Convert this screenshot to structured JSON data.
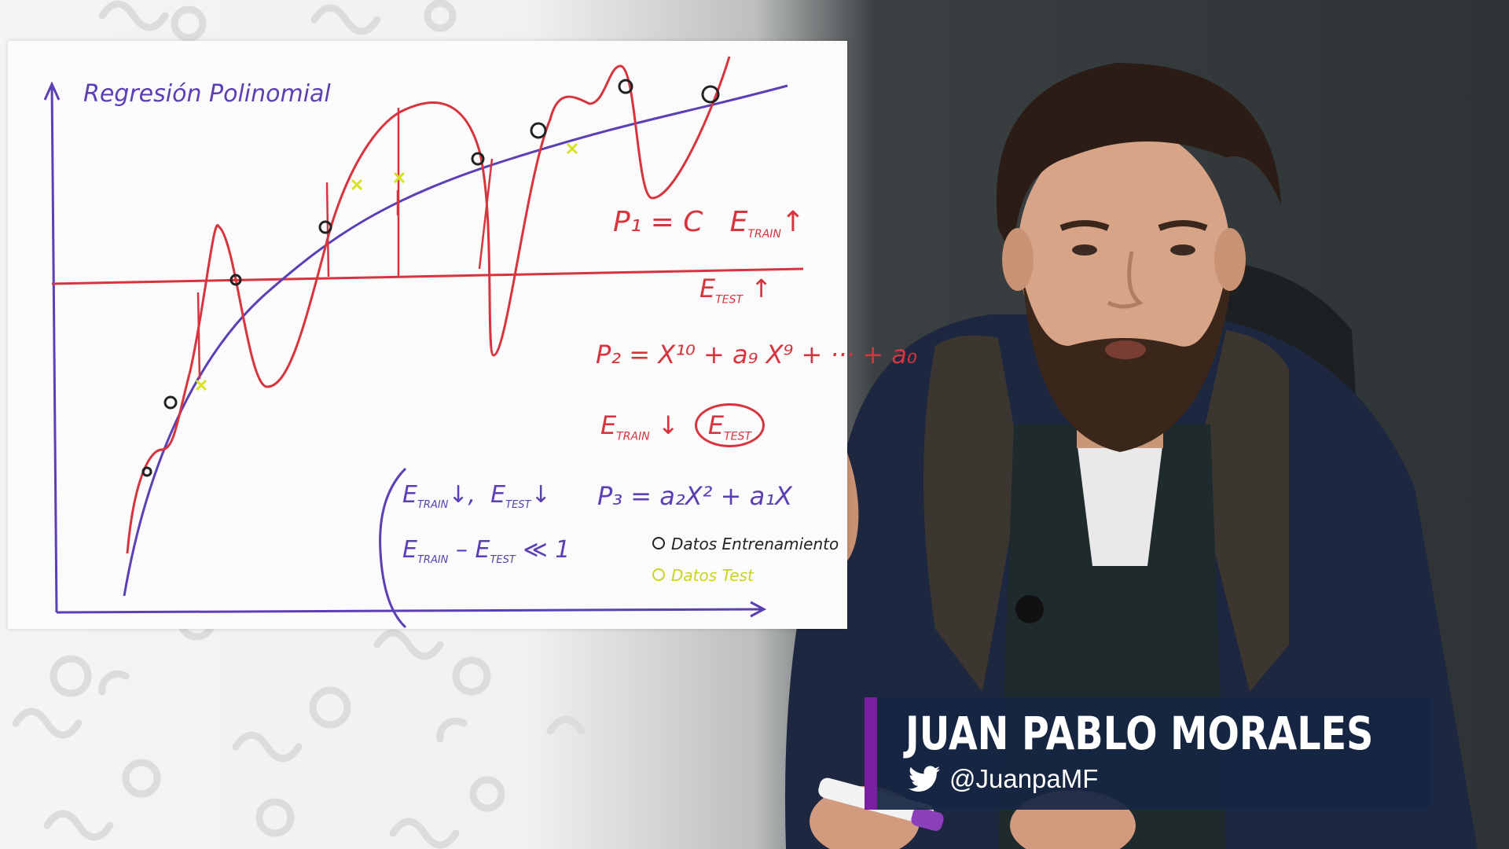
{
  "whiteboard": {
    "title": "Regresión Polinomial",
    "eq_p1": "P₁ = C",
    "e_train": "E",
    "train_sub": "TRAIN",
    "e_test": "E",
    "test_sub": "TEST",
    "up_arrow": "↑",
    "down_arrow": "↓",
    "eq_p2": "P₂ = X¹⁰ + a₉ X⁹ + ··· + a₀",
    "eq_p3": "P₃ = a₂X² + a₁X",
    "ll_one": "≪ 1",
    "legend_train": "Datos Entrenamiento",
    "legend_test": "Datos Test",
    "colors": {
      "purple_ink": "#5b3fb5",
      "red_ink": "#d8343e",
      "black_ink": "#222222",
      "yellow_ink": "#d7e21f"
    }
  },
  "lower_third": {
    "name": "JUAN PABLO MORALES",
    "handle": "@JuanpaMF",
    "icon": "twitter-icon",
    "accent_color": "#7b1fa2",
    "bg_color": "#162642"
  }
}
